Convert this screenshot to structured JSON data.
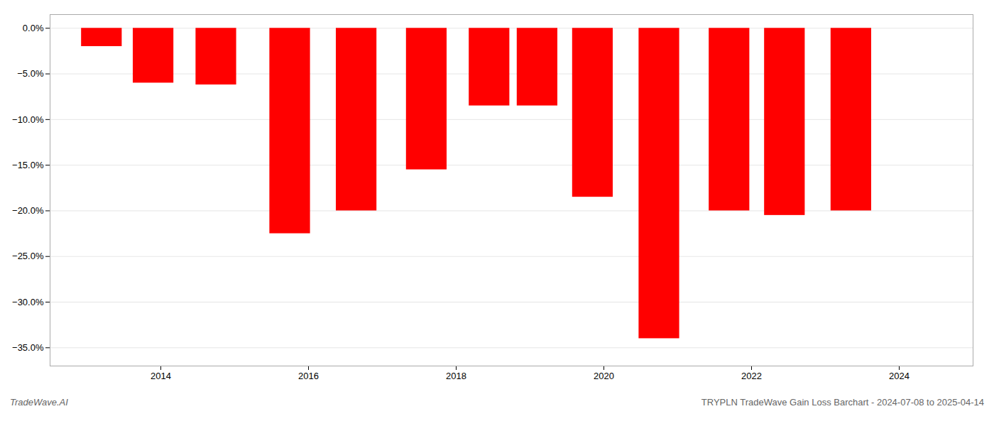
{
  "chart_data": {
    "type": "bar",
    "x": [
      2013.2,
      2013.9,
      2014.75,
      2015.75,
      2016.65,
      2017.6,
      2018.45,
      2019.1,
      2019.85,
      2020.75,
      2021.7,
      2022.45,
      2023.35
    ],
    "values": [
      -2.0,
      -6.0,
      -6.2,
      -22.5,
      -20.0,
      -15.5,
      -8.5,
      -8.5,
      -18.5,
      -34.0,
      -20.0,
      -20.5,
      -20.0
    ],
    "color": "#ff0000",
    "xlim": [
      2012.5,
      2025.0
    ],
    "xticks": [
      2014,
      2016,
      2018,
      2020,
      2022,
      2024
    ],
    "ylim": [
      -37,
      1.5
    ],
    "yticks": [
      {
        "value": 0.0,
        "label": "0.0%"
      },
      {
        "value": -5.0,
        "label": "−5.0%"
      },
      {
        "value": -10.0,
        "label": "−10.0%"
      },
      {
        "value": -15.0,
        "label": "−15.0%"
      },
      {
        "value": -20.0,
        "label": "−20.0%"
      },
      {
        "value": -25.0,
        "label": "−25.0%"
      },
      {
        "value": -30.0,
        "label": "−30.0%"
      },
      {
        "value": -35.0,
        "label": "−35.0%"
      }
    ],
    "grid": true,
    "annotations": [
      "TradeWave.AI",
      "TRYPLN TradeWave Gain Loss Barchart - 2024-07-08 to 2025-04-14"
    ]
  }
}
